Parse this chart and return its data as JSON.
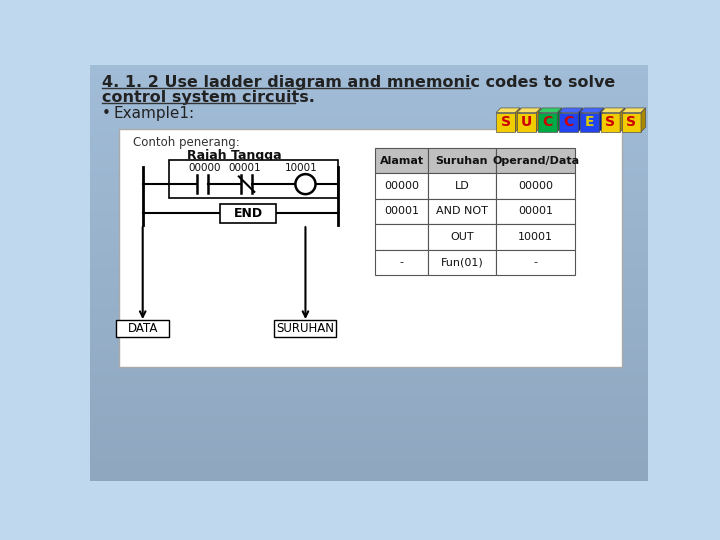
{
  "title_line1": "4. 1. 2 Use ladder diagram and mnemonic codes to solve",
  "title_line2": "control system circuits.",
  "bullet": "Example1:",
  "slide_bg": "#c0d8ee",
  "contoh_label": "Contoh penerang:",
  "rajah_label": "Rajah Tangga",
  "labels_top": [
    "00000",
    "00001",
    "10001"
  ],
  "end_label": "END",
  "data_label": "DATA",
  "suruhan_label": "SURUHAN",
  "table_headers": [
    "Alamat",
    "Suruhan",
    "Operand/Data"
  ],
  "table_rows": [
    [
      "00000",
      "LD",
      "00000"
    ],
    [
      "00001",
      "AND NOT",
      "00001"
    ],
    [
      "",
      "OUT",
      "10001"
    ],
    [
      "-",
      "Fun(01)",
      "-"
    ]
  ],
  "success_word": "SUCCESS",
  "block_face": [
    "#f0cc00",
    "#f0cc00",
    "#00aa44",
    "#2244ee",
    "#2244ee",
    "#f0cc00",
    "#f0cc00"
  ],
  "block_top": [
    "#f8e060",
    "#f8e060",
    "#33cc66",
    "#4466ff",
    "#4466ff",
    "#f8e060",
    "#f8e060"
  ],
  "block_side": [
    "#aa8800",
    "#aa8800",
    "#007733",
    "#0022aa",
    "#0022aa",
    "#aa8800",
    "#aa8800"
  ],
  "ltr_clr": [
    "#cc0000",
    "#cc0000",
    "#cc0000",
    "#cc0000",
    "#ddcc00",
    "#cc0000",
    "#cc0000"
  ]
}
